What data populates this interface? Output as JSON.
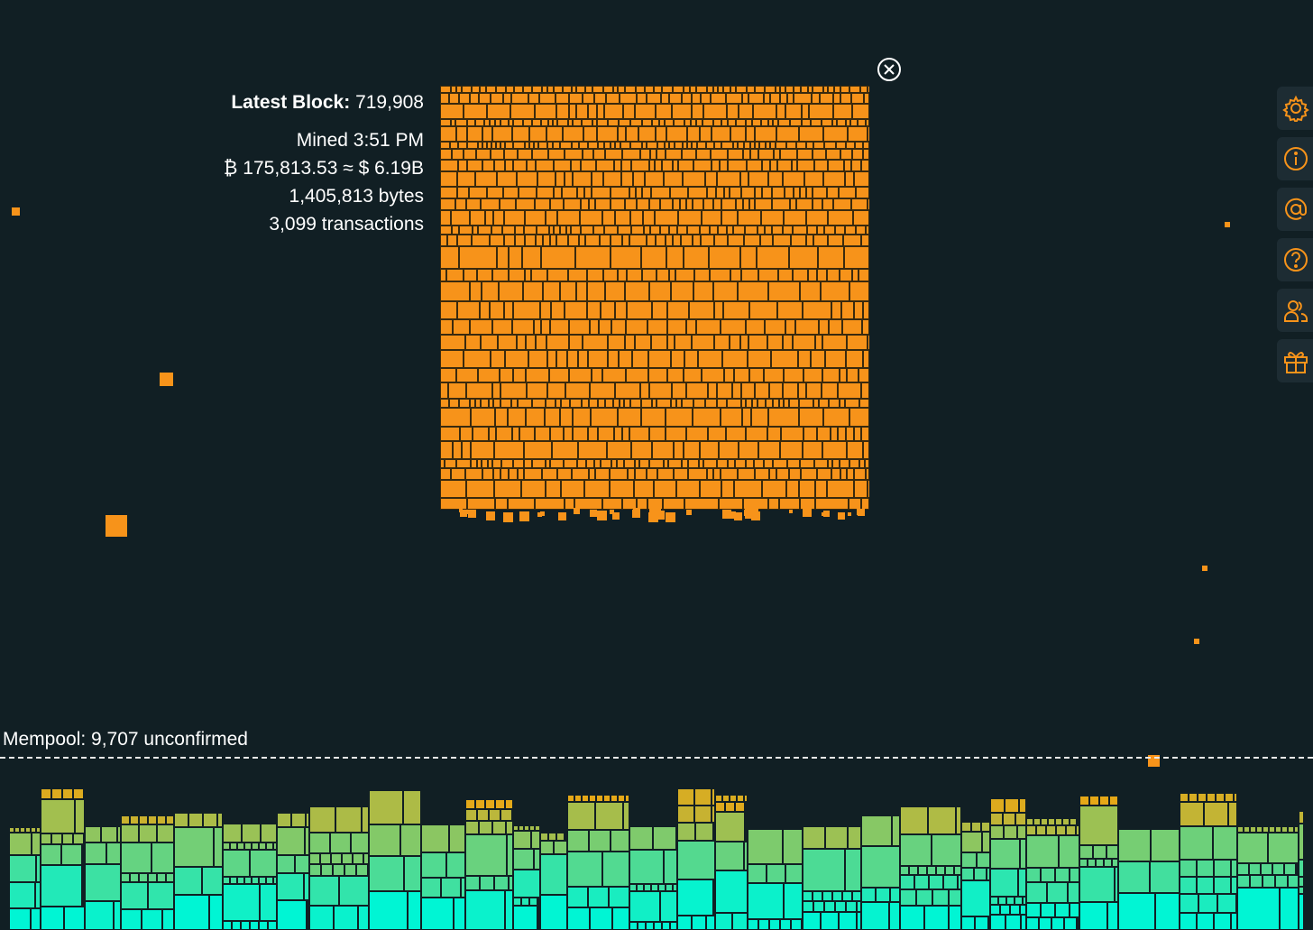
{
  "block": {
    "latest_label": "Latest Block:",
    "height": "719,908",
    "mined": "Mined 3:51 PM",
    "value": "₿ 175,813.53 ≈ $ 6.19B",
    "size": "1,405,813 bytes",
    "tx_count": "3,099 transactions"
  },
  "mempool": {
    "label": "Mempool: 9,707 unconfirmed"
  },
  "sidebar": {
    "items": [
      {
        "name": "settings",
        "icon": "gear-icon"
      },
      {
        "name": "info",
        "icon": "info-icon"
      },
      {
        "name": "contact",
        "icon": "at-icon"
      },
      {
        "name": "help",
        "icon": "question-icon"
      },
      {
        "name": "community",
        "icon": "users-icon"
      },
      {
        "name": "donate",
        "icon": "gift-icon"
      }
    ]
  },
  "colors": {
    "background": "#111f24",
    "block_tx": "#f7931a",
    "block_gap": "#3a2a0e",
    "accent_icon": "#f7931a",
    "mempool_low_fee": "#00f5d4",
    "mempool_high_fee": "#e6a817"
  }
}
